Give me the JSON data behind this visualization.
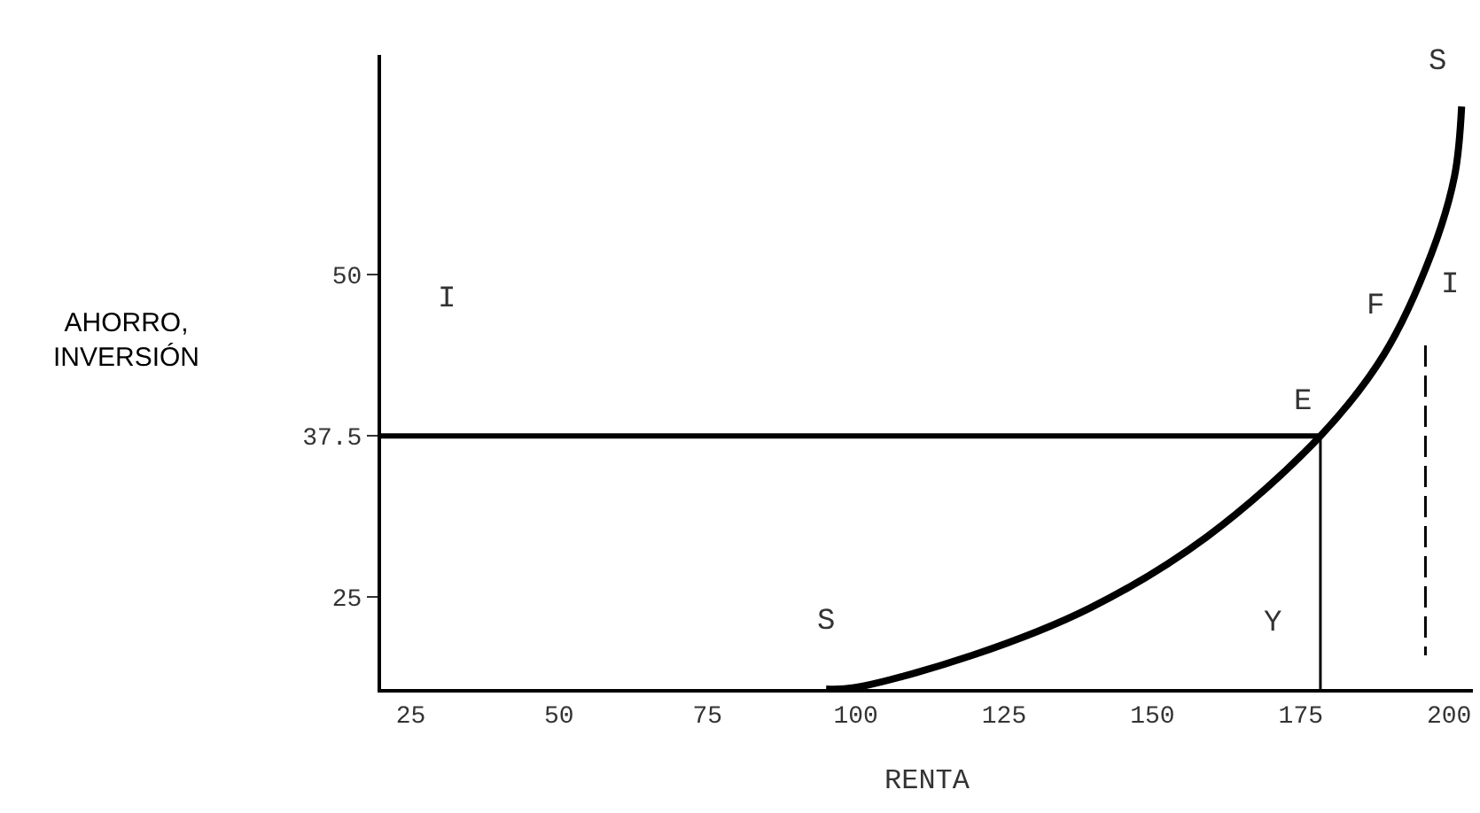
{
  "chart_data": {
    "type": "line",
    "xlabel": "RENTA",
    "ylabel": "AHORRO,\nINVERSIÓN",
    "xlim": [
      20,
      204
    ],
    "ylim": [
      17.9,
      67
    ],
    "xticks": [
      25,
      50,
      75,
      100,
      125,
      150,
      175,
      200
    ],
    "yticks": [
      25,
      37.5,
      50
    ],
    "marker": "none",
    "series": [
      {
        "color": "#000000",
        "x": [
          95,
          99.7,
          119.6,
          139.6,
          159.2,
          178.3,
          189.0,
          197.0,
          200.9,
          202.1
        ],
        "values": [
          17.9,
          18.0,
          20.5,
          24.2,
          29.7,
          37.5,
          43.8,
          51.6,
          57.6,
          63.0
        ],
        "line_style": "solid"
      },
      {
        "color": "#000000",
        "x": [
          20,
          178.3
        ],
        "values": [
          37.5,
          37.5
        ],
        "line_style": "solid"
      },
      {
        "color": "#000000",
        "x": [
          178.3,
          178.3
        ],
        "values": [
          37.5,
          17.9
        ],
        "line_style": "solid"
      },
      {
        "color": "#000000",
        "x": [
          196,
          196
        ],
        "values": [
          44.5,
          20.5
        ],
        "line_style": "dashed"
      }
    ],
    "annotations": [
      "S",
      "S",
      "I",
      "I",
      "F",
      "E",
      "Y"
    ]
  }
}
